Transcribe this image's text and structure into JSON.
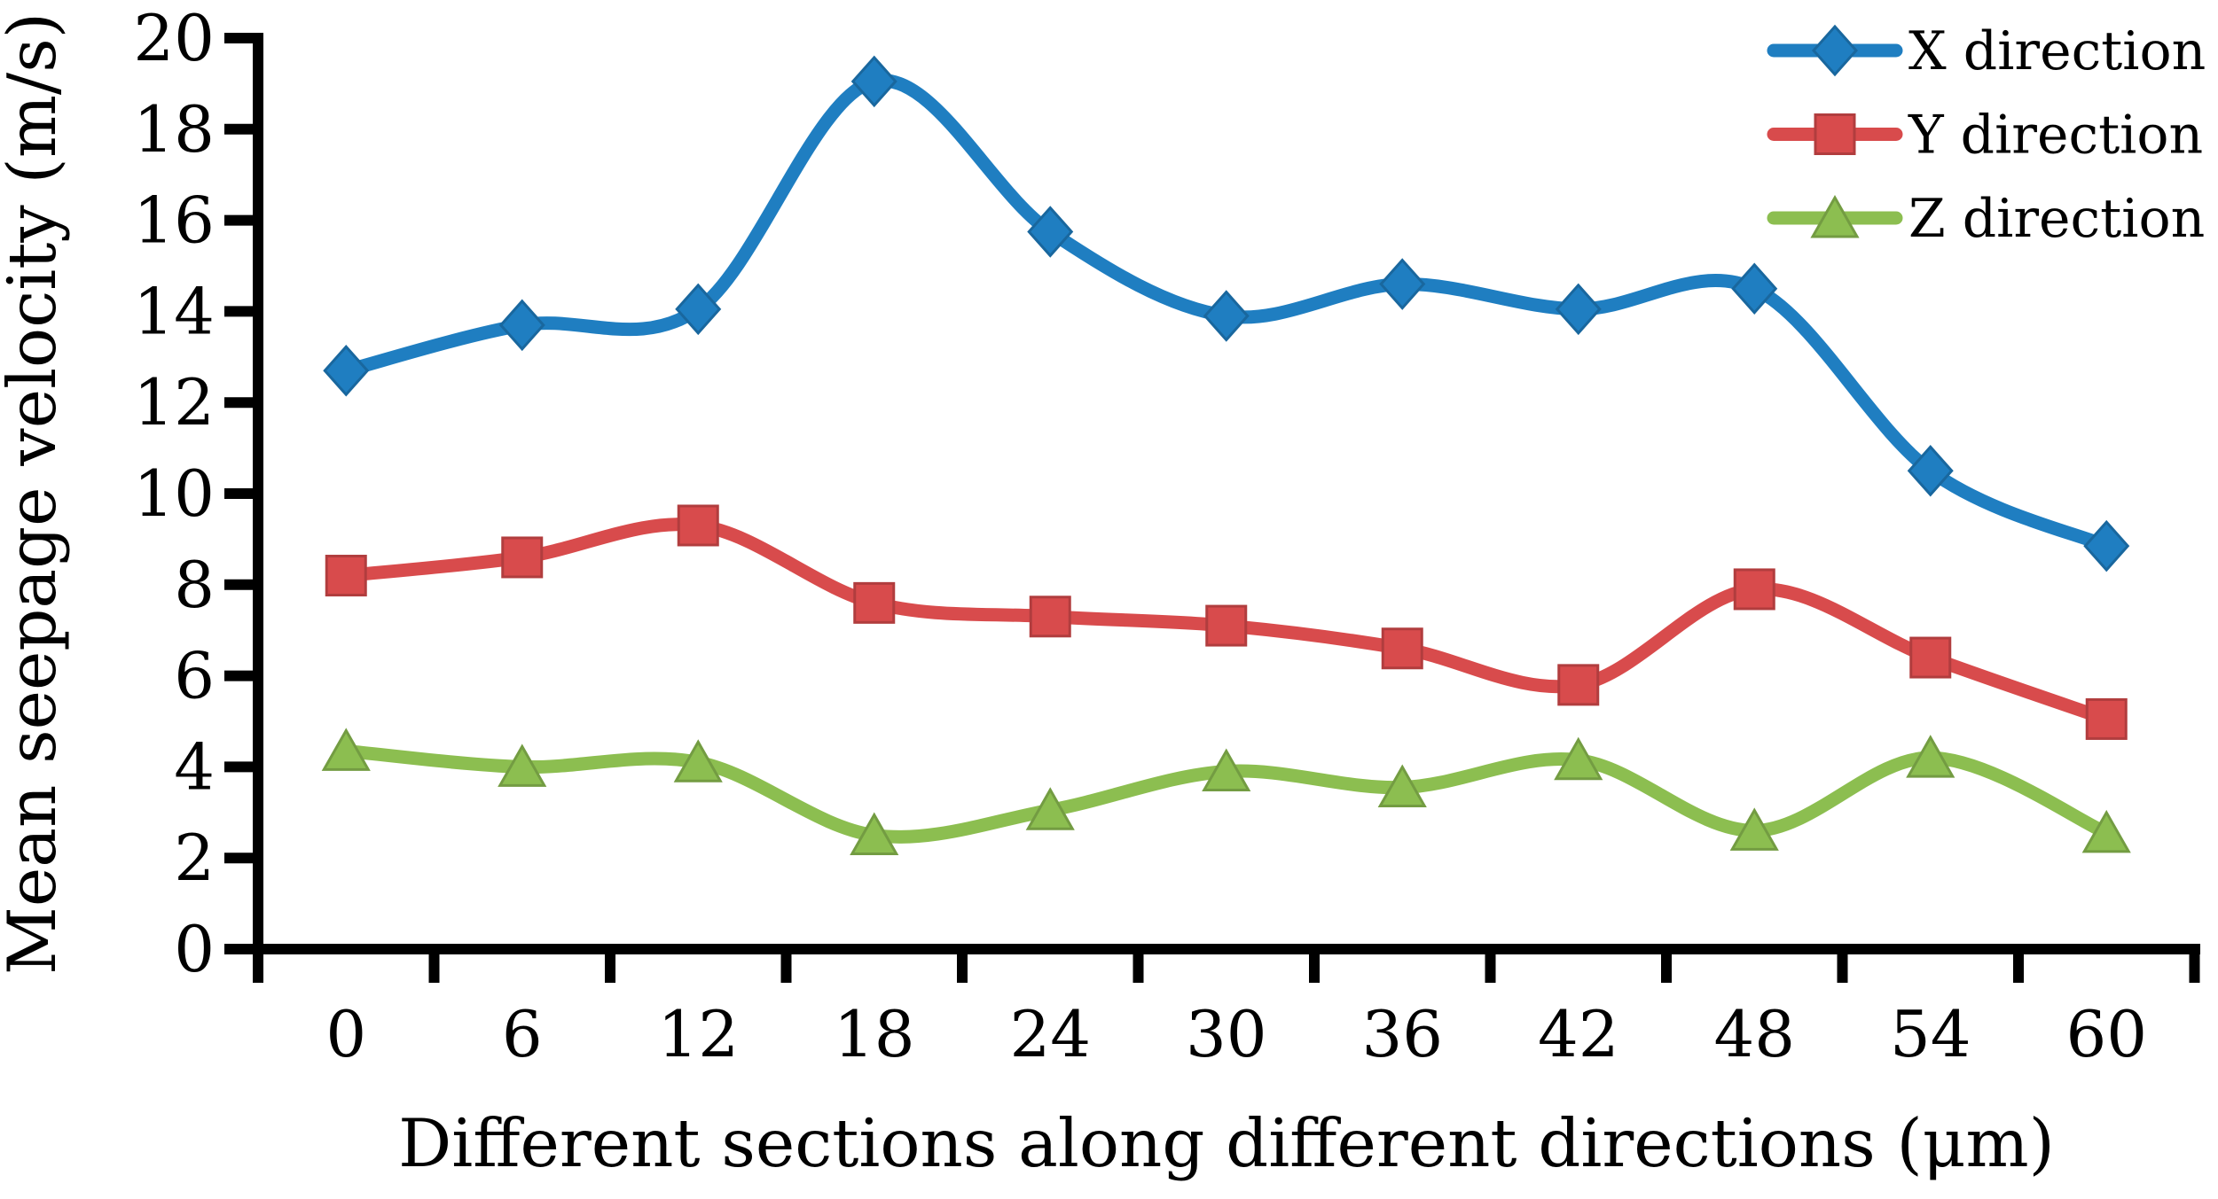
{
  "chart_data": {
    "type": "line",
    "title": "",
    "xlabel": "Different sections along different directions (μm)",
    "ylabel": "Mean seepage velocity (m/s)",
    "categories": [
      0,
      6,
      12,
      18,
      24,
      30,
      36,
      42,
      48,
      54,
      60
    ],
    "series": [
      {
        "name": "X direction",
        "color": "#1f7ec1",
        "marker": "diamond",
        "values": [
          12.7,
          13.7,
          14.05,
          19.05,
          15.75,
          13.9,
          14.6,
          14.05,
          14.5,
          10.5,
          8.85
        ]
      },
      {
        "name": "Y direction",
        "color": "#d84b4c",
        "marker": "square",
        "values": [
          8.2,
          8.6,
          9.3,
          7.6,
          7.3,
          7.1,
          6.6,
          5.8,
          7.9,
          6.4,
          5.05
        ]
      },
      {
        "name": "Z direction",
        "color": "#8cbe50",
        "marker": "triangle",
        "values": [
          4.35,
          4.0,
          4.1,
          2.5,
          3.05,
          3.9,
          3.55,
          4.15,
          2.6,
          4.2,
          2.55
        ]
      }
    ],
    "ylim": [
      0,
      20
    ],
    "ytick_step": 2,
    "grid": false,
    "smooth_lines": true,
    "legend_position": "top-right",
    "axis_color": "#000000"
  }
}
